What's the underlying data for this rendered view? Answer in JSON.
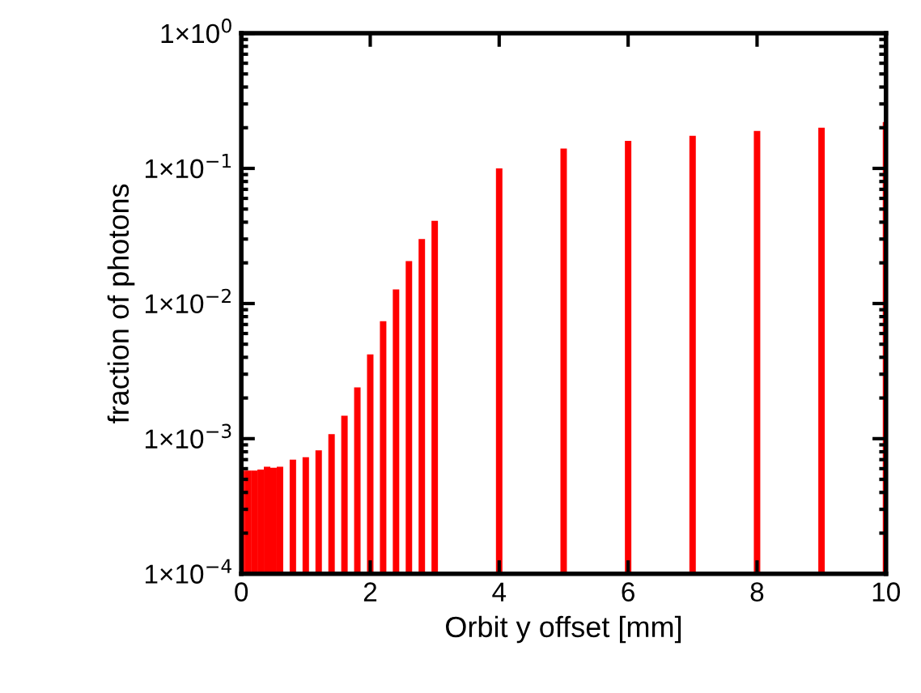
{
  "chart_data": {
    "type": "bar",
    "xlabel": "Orbit y offset [mm]",
    "ylabel": "fraction of photons",
    "x": [
      0,
      0.1,
      0.2,
      0.3,
      0.4,
      0.5,
      0.6,
      0.8,
      1.0,
      1.2,
      1.4,
      1.6,
      1.8,
      2.0,
      2.2,
      2.4,
      2.6,
      2.8,
      3.0,
      4,
      5,
      6,
      7,
      8,
      9,
      10
    ],
    "series": [
      {
        "color": "#ff0000",
        "values": [
          0.00058,
          0.00058,
          0.00058,
          0.00059,
          0.00062,
          0.00061,
          0.00062,
          0.0007,
          0.00073,
          0.00082,
          0.00108,
          0.00148,
          0.0024,
          0.0042,
          0.0074,
          0.0127,
          0.0206,
          0.03,
          0.041,
          0.1,
          0.14,
          0.16,
          0.174,
          0.189,
          0.2,
          0.22
        ]
      }
    ],
    "log": "y",
    "xlim": [
      0,
      10
    ],
    "xticks": [
      0,
      2,
      4,
      6,
      8,
      10
    ],
    "ylim": [
      0.0001,
      1
    ],
    "yticks": [
      {
        "value": 0.0001,
        "label": "1×10$^{−4}$"
      },
      {
        "value": 0.001,
        "label": "1×10$^{−3}$"
      },
      {
        "value": 0.01,
        "label": "1×10$^{−2}$"
      },
      {
        "value": 0.1,
        "label": "1×10$^{−1}$"
      },
      {
        "value": 1,
        "label": "1×10$^{0}$"
      }
    ],
    "grid": false,
    "legend": false
  }
}
